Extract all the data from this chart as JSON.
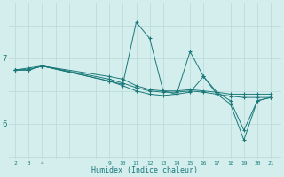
{
  "xlabel": "Humidex (Indice chaleur)",
  "bg_color": "#d4eeee",
  "line_color": "#1a7878",
  "grid_color": "#b8d8d8",
  "yticks": [
    6,
    7
  ],
  "xtick_labels": [
    2,
    3,
    4,
    9,
    10,
    11,
    12,
    13,
    14,
    15,
    16,
    17,
    18,
    19,
    20,
    21
  ],
  "xlim": [
    1.5,
    21.8
  ],
  "ylim": [
    5.45,
    7.85
  ],
  "series": [
    {
      "x": [
        2,
        3,
        4,
        9,
        10,
        11,
        12,
        13,
        14,
        15,
        16,
        17,
        18,
        19,
        20,
        21
      ],
      "y": [
        6.82,
        6.85,
        6.88,
        6.72,
        6.68,
        6.58,
        6.52,
        6.5,
        6.5,
        6.52,
        6.5,
        6.48,
        6.45,
        6.45,
        6.45,
        6.45
      ]
    },
    {
      "x": [
        2,
        3,
        4,
        9,
        10,
        11,
        12,
        13,
        14,
        15,
        16,
        17,
        18,
        19,
        20,
        21
      ],
      "y": [
        6.82,
        6.82,
        6.88,
        6.68,
        6.62,
        6.55,
        6.5,
        6.48,
        6.48,
        6.5,
        6.48,
        6.45,
        6.42,
        6.4,
        6.4,
        6.4
      ]
    },
    {
      "x": [
        2,
        3,
        4,
        9,
        10,
        11,
        12,
        13,
        14,
        15,
        16,
        17,
        18,
        19,
        20,
        21
      ],
      "y": [
        6.82,
        6.82,
        6.88,
        6.65,
        6.58,
        6.5,
        6.45,
        6.43,
        6.45,
        7.1,
        6.72,
        6.45,
        6.3,
        5.75,
        6.35,
        6.4
      ]
    },
    {
      "x": [
        2,
        3,
        4,
        9,
        10,
        11,
        12,
        13,
        14,
        15,
        16,
        17,
        18,
        19,
        20,
        21
      ],
      "y": [
        6.82,
        6.82,
        6.88,
        6.65,
        6.6,
        7.55,
        7.3,
        6.5,
        6.45,
        6.48,
        6.72,
        6.48,
        6.35,
        5.9,
        6.35,
        6.4
      ]
    }
  ]
}
